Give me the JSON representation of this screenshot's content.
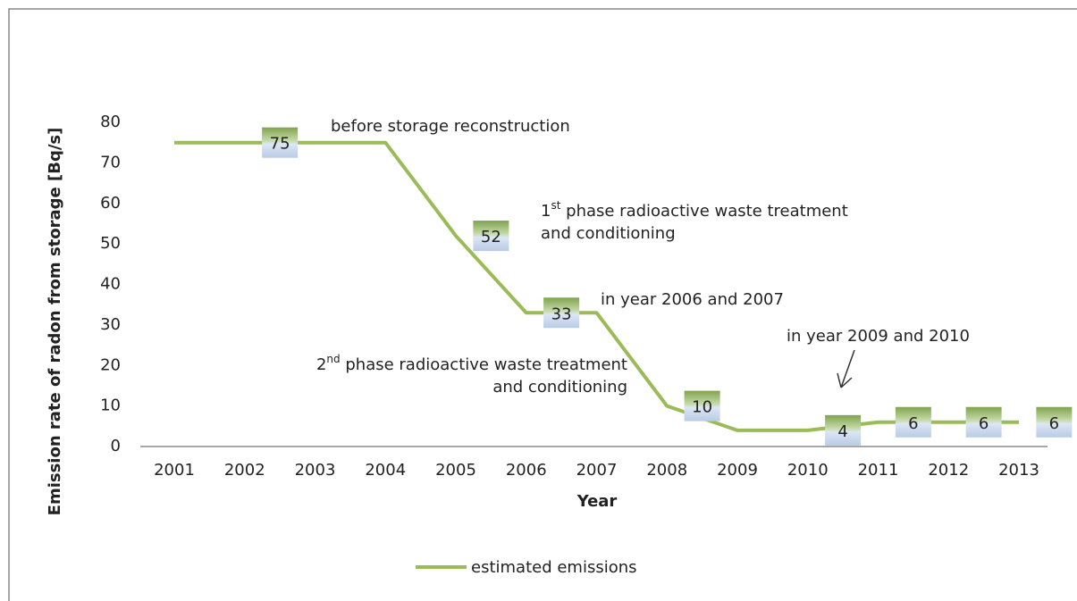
{
  "chart_data": {
    "type": "line",
    "x_label": "Year",
    "y_label": "Emission rate of radon from storage [Bq/s]",
    "categories": [
      "2001",
      "2002",
      "2003",
      "2004",
      "2005",
      "2006",
      "2007",
      "2008",
      "2009",
      "2010",
      "2011",
      "2012",
      "2013"
    ],
    "series": [
      {
        "name": "estimated emissions",
        "color": "#9bbb59",
        "values": [
          75,
          75,
          75,
          75,
          52,
          33,
          33,
          10,
          4,
          4,
          6,
          6,
          6
        ],
        "data_labels": [
          false,
          true,
          false,
          false,
          true,
          true,
          false,
          true,
          false,
          true,
          true,
          true,
          true
        ]
      }
    ],
    "ylim": [
      0,
      80
    ],
    "yticks": [
      0,
      10,
      20,
      30,
      40,
      50,
      60,
      70,
      80
    ],
    "grid": false,
    "legend": "bottom",
    "annotations": [
      {
        "text": "before storage reconstruction",
        "color": "#5f7f3a"
      },
      {
        "ordinal": "1",
        "sup": "st",
        "text": " phase radioactive waste treatment",
        "line2": "and conditioning",
        "color": "#5b8fd0"
      },
      {
        "text": "in year 2006 and 2007",
        "color": "#5f7f3a"
      },
      {
        "ordinal": "2",
        "sup": "nd",
        "text": " phase radioactive waste treatment",
        "line2": "and conditioning",
        "color": "#5b8fd0"
      },
      {
        "text": "in year 2009 and 2010",
        "color": "#5f7f3a"
      }
    ]
  }
}
